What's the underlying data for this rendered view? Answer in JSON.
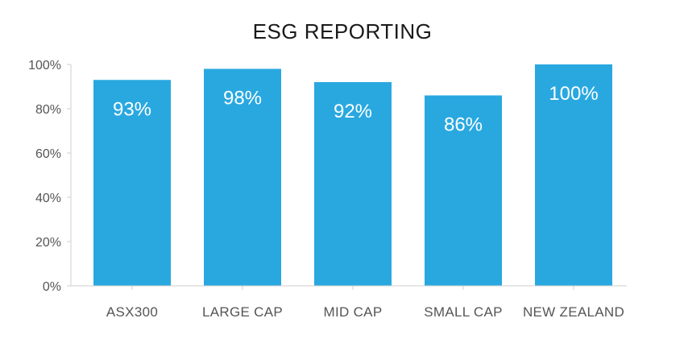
{
  "chart_data": {
    "type": "bar",
    "title": "ESG REPORTING",
    "xlabel": "",
    "ylabel": "",
    "categories": [
      "ASX300",
      "LARGE CAP",
      "MID CAP",
      "SMALL CAP",
      "NEW ZEALAND"
    ],
    "values": [
      93,
      98,
      92,
      86,
      100
    ],
    "data_labels": [
      "93%",
      "98%",
      "92%",
      "86%",
      "100%"
    ],
    "y_ticks": [
      0,
      20,
      40,
      60,
      80,
      100
    ],
    "y_tick_labels": [
      "0%",
      "20%",
      "40%",
      "60%",
      "80%",
      "100%"
    ],
    "ylim": [
      0,
      100
    ],
    "grid": false,
    "legend": "none",
    "bar_color": "#29a8e0"
  }
}
